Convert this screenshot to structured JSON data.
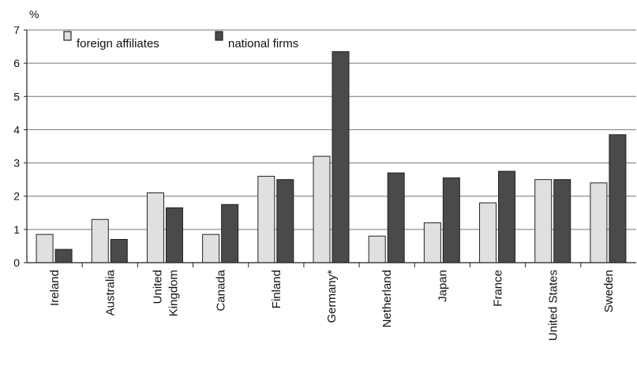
{
  "chart_data": {
    "type": "bar",
    "yunit": "%",
    "ylim": [
      0,
      7
    ],
    "yticks": [
      0,
      1,
      2,
      3,
      4,
      5,
      6,
      7
    ],
    "grid": true,
    "legend_position": "top-left",
    "categories": [
      [
        "Ireland"
      ],
      [
        "Australia"
      ],
      [
        "United",
        "Kingdom"
      ],
      [
        "Canada"
      ],
      [
        "Finland"
      ],
      [
        "Germany*"
      ],
      [
        "Netherland"
      ],
      [
        "Japan"
      ],
      [
        "France"
      ],
      [
        "United States"
      ],
      [
        "Sweden"
      ]
    ],
    "series": [
      {
        "name": "foreign affiliates",
        "color": "#e0e0e0",
        "values": [
          0.85,
          1.3,
          2.1,
          0.85,
          2.6,
          3.2,
          0.8,
          1.2,
          1.8,
          2.5,
          2.4
        ]
      },
      {
        "name": "national firms",
        "color": "#4a4a4a",
        "values": [
          0.4,
          0.7,
          1.65,
          1.75,
          2.5,
          6.35,
          2.7,
          2.55,
          2.75,
          2.5,
          3.85
        ]
      }
    ]
  }
}
